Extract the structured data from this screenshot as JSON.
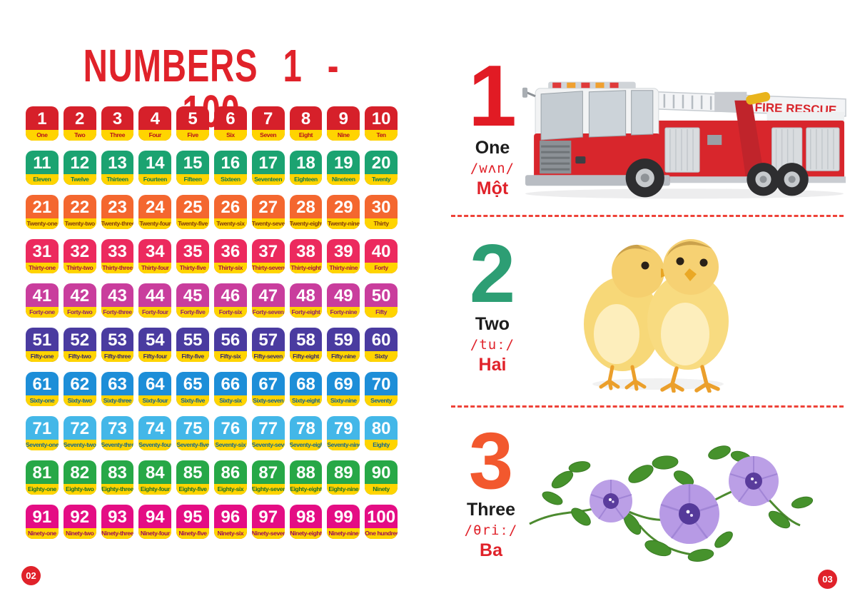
{
  "colors": {
    "accent_red": "#e0222a",
    "strip_yellow": "#ffd400",
    "separator_red": "#ee4238"
  },
  "left_page": {
    "title": "NUMBERS 1 - 100",
    "page_number": "02",
    "rows": [
      {
        "tile_color": "#d6202a",
        "label_color": "#b5121b",
        "tiles": [
          {
            "n": "1",
            "word": "One"
          },
          {
            "n": "2",
            "word": "Two"
          },
          {
            "n": "3",
            "word": "Three"
          },
          {
            "n": "4",
            "word": "Four"
          },
          {
            "n": "5",
            "word": "Five"
          },
          {
            "n": "6",
            "word": "Six"
          },
          {
            "n": "7",
            "word": "Seven"
          },
          {
            "n": "8",
            "word": "Eight"
          },
          {
            "n": "9",
            "word": "Nine"
          },
          {
            "n": "10",
            "word": "Ten"
          }
        ]
      },
      {
        "tile_color": "#1ba371",
        "label_color": "#0c7a52",
        "tiles": [
          {
            "n": "11",
            "word": "Eleven"
          },
          {
            "n": "12",
            "word": "Twelve"
          },
          {
            "n": "13",
            "word": "Thirteen"
          },
          {
            "n": "14",
            "word": "Fourteen"
          },
          {
            "n": "15",
            "word": "Fifteen"
          },
          {
            "n": "16",
            "word": "Sixteen"
          },
          {
            "n": "17",
            "word": "Seventeen"
          },
          {
            "n": "18",
            "word": "Eighteen"
          },
          {
            "n": "19",
            "word": "Nineteen"
          },
          {
            "n": "20",
            "word": "Twenty"
          }
        ]
      },
      {
        "tile_color": "#f4672f",
        "label_color": "#823a0c",
        "tiles": [
          {
            "n": "21",
            "word": "Twenty-one"
          },
          {
            "n": "22",
            "word": "Twenty-two"
          },
          {
            "n": "23",
            "word": "Twenty-three"
          },
          {
            "n": "24",
            "word": "Twenty-four"
          },
          {
            "n": "25",
            "word": "Twenty-five"
          },
          {
            "n": "26",
            "word": "Twenty-six"
          },
          {
            "n": "27",
            "word": "Twenty-seven"
          },
          {
            "n": "28",
            "word": "Twenty-eight"
          },
          {
            "n": "29",
            "word": "Twenty-nine"
          },
          {
            "n": "30",
            "word": "Thirty"
          }
        ]
      },
      {
        "tile_color": "#ec2a5e",
        "label_color": "#a31440",
        "tiles": [
          {
            "n": "31",
            "word": "Thirty-one"
          },
          {
            "n": "32",
            "word": "Thirty-two"
          },
          {
            "n": "33",
            "word": "Thirty-three"
          },
          {
            "n": "34",
            "word": "Thirty-four"
          },
          {
            "n": "35",
            "word": "Thirty-five"
          },
          {
            "n": "36",
            "word": "Thirty-six"
          },
          {
            "n": "37",
            "word": "Thirty-seven"
          },
          {
            "n": "38",
            "word": "Thirty-eight"
          },
          {
            "n": "39",
            "word": "Thirty-nine"
          },
          {
            "n": "40",
            "word": "Forty"
          }
        ]
      },
      {
        "tile_color": "#c93d9d",
        "label_color": "#8e1f6e",
        "tiles": [
          {
            "n": "41",
            "word": "Forty-one"
          },
          {
            "n": "42",
            "word": "Forty-two"
          },
          {
            "n": "43",
            "word": "Forty-three"
          },
          {
            "n": "44",
            "word": "Forty-four"
          },
          {
            "n": "45",
            "word": "Forty-five"
          },
          {
            "n": "46",
            "word": "Forty-six"
          },
          {
            "n": "47",
            "word": "Forty-seven"
          },
          {
            "n": "48",
            "word": "Forty-eight"
          },
          {
            "n": "49",
            "word": "Forty-nine"
          },
          {
            "n": "50",
            "word": "Fifty"
          }
        ]
      },
      {
        "tile_color": "#4a3ba0",
        "label_color": "#35286f",
        "tiles": [
          {
            "n": "51",
            "word": "Fifty-one"
          },
          {
            "n": "52",
            "word": "Fifty-two"
          },
          {
            "n": "53",
            "word": "Fifty-three"
          },
          {
            "n": "54",
            "word": "Fifty-four"
          },
          {
            "n": "55",
            "word": "Fifty-five"
          },
          {
            "n": "56",
            "word": "Fifty-six"
          },
          {
            "n": "57",
            "word": "Fifty-seven"
          },
          {
            "n": "58",
            "word": "Fifty-eight"
          },
          {
            "n": "59",
            "word": "Fifty-nine"
          },
          {
            "n": "60",
            "word": "Sixty"
          }
        ]
      },
      {
        "tile_color": "#1d8ed8",
        "label_color": "#0f6096",
        "tiles": [
          {
            "n": "61",
            "word": "Sixty-one"
          },
          {
            "n": "62",
            "word": "Sixty-two"
          },
          {
            "n": "63",
            "word": "Sixty-three"
          },
          {
            "n": "64",
            "word": "Sixty-four"
          },
          {
            "n": "65",
            "word": "Sixty-five"
          },
          {
            "n": "66",
            "word": "Sixty-six"
          },
          {
            "n": "67",
            "word": "Sixty-seven"
          },
          {
            "n": "68",
            "word": "Sixty-eight"
          },
          {
            "n": "69",
            "word": "Sixty-nine"
          },
          {
            "n": "70",
            "word": "Seventy"
          }
        ]
      },
      {
        "tile_color": "#43b7e8",
        "label_color": "#16688c",
        "tiles": [
          {
            "n": "71",
            "word": "Seventy-one"
          },
          {
            "n": "72",
            "word": "Seventy-two"
          },
          {
            "n": "73",
            "word": "Seventy-three"
          },
          {
            "n": "74",
            "word": "Seventy-four"
          },
          {
            "n": "75",
            "word": "Seventy-five"
          },
          {
            "n": "76",
            "word": "Seventy-six"
          },
          {
            "n": "77",
            "word": "Seventy-seven"
          },
          {
            "n": "78",
            "word": "Seventy-eight"
          },
          {
            "n": "79",
            "word": "Seventy-nine"
          },
          {
            "n": "80",
            "word": "Eighty"
          }
        ]
      },
      {
        "tile_color": "#27a847",
        "label_color": "#17702e",
        "tiles": [
          {
            "n": "81",
            "word": "Eighty-one"
          },
          {
            "n": "82",
            "word": "Eighty-two"
          },
          {
            "n": "83",
            "word": "Eighty-three"
          },
          {
            "n": "84",
            "word": "Eighty-four"
          },
          {
            "n": "85",
            "word": "Eighty-five"
          },
          {
            "n": "86",
            "word": "Eighty-six"
          },
          {
            "n": "87",
            "word": "Eighty-seven"
          },
          {
            "n": "88",
            "word": "Eighty-eight"
          },
          {
            "n": "89",
            "word": "Eighty-nine"
          },
          {
            "n": "90",
            "word": "Ninety"
          }
        ]
      },
      {
        "tile_color": "#e40d84",
        "label_color": "#9c0a59",
        "tiles": [
          {
            "n": "91",
            "word": "Ninety-one"
          },
          {
            "n": "92",
            "word": "Ninety-two"
          },
          {
            "n": "93",
            "word": "Ninety-three"
          },
          {
            "n": "94",
            "word": "Ninety-four"
          },
          {
            "n": "95",
            "word": "Ninety-five"
          },
          {
            "n": "96",
            "word": "Ninety-six"
          },
          {
            "n": "97",
            "word": "Ninety-seven"
          },
          {
            "n": "98",
            "word": "Ninety-eight"
          },
          {
            "n": "99",
            "word": "Ninety-nine"
          },
          {
            "n": "100",
            "word": "One hundred"
          }
        ]
      }
    ]
  },
  "right_page": {
    "page_number": "03",
    "entries": [
      {
        "numeral": "1",
        "numeral_color": "#e11b24",
        "word": "One",
        "phonetic": "/wʌn/",
        "vietnamese": "Một",
        "image": "fire-truck"
      },
      {
        "numeral": "2",
        "numeral_color": "#2d9e74",
        "word": "Two",
        "phonetic": "/tuː/",
        "vietnamese": "Hai",
        "image": "chicks"
      },
      {
        "numeral": "3",
        "numeral_color": "#f2582e",
        "word": "Three",
        "phonetic": "/θriː/",
        "vietnamese": "Ba",
        "image": "flowers"
      }
    ],
    "truck_sign": "FIRE RESCUE"
  }
}
